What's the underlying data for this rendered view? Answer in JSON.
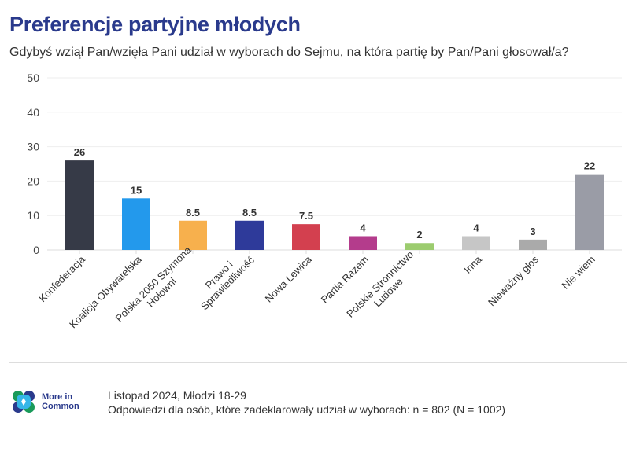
{
  "title": "Preferencje partyjne młodych",
  "chart_data": {
    "type": "bar",
    "title": "Gdybyś wziął Pan/wzięła Pani udział w wyborach do Sejmu, na która partię by Pan/Pani głosował/a?",
    "categories": [
      [
        "Konfederacja"
      ],
      [
        "Koalicja Obywatelska"
      ],
      [
        "Polska 2050 Szymona",
        "Hołowni"
      ],
      [
        "Prawo i",
        "Sprawiedliwość"
      ],
      [
        "Nowa Lewica"
      ],
      [
        "Partia Razem"
      ],
      [
        "Polskie Stronnictwo",
        "Ludowe"
      ],
      [
        "Inna"
      ],
      [
        "Nieważny głos"
      ],
      [
        "Nie wiem"
      ]
    ],
    "values": [
      26,
      15,
      8.5,
      8.5,
      7.5,
      4,
      2,
      4,
      3,
      22
    ],
    "value_labels": [
      "26",
      "15",
      "8.5",
      "8.5",
      "7.5",
      "4",
      "2",
      "4",
      "3",
      "22"
    ],
    "colors": [
      "#363a47",
      "#2399ec",
      "#f7b04d",
      "#2e3a9a",
      "#d3404f",
      "#b43c8c",
      "#9ccc6f",
      "#c6c6c6",
      "#aaaaaa",
      "#9a9ca6"
    ],
    "yticks": [
      "0",
      "10",
      "20",
      "30",
      "40",
      "50"
    ],
    "ylim": [
      0,
      50
    ],
    "grid": true,
    "xlabel": "",
    "ylabel": ""
  },
  "footer": {
    "logo": "More in Common",
    "line1": "Listopad 2024, Młodzi 18-29",
    "line2": "Odpowiedzi dla osób, które zadeklarowały udział w wyborach: n = 802 (N = 1002)"
  }
}
